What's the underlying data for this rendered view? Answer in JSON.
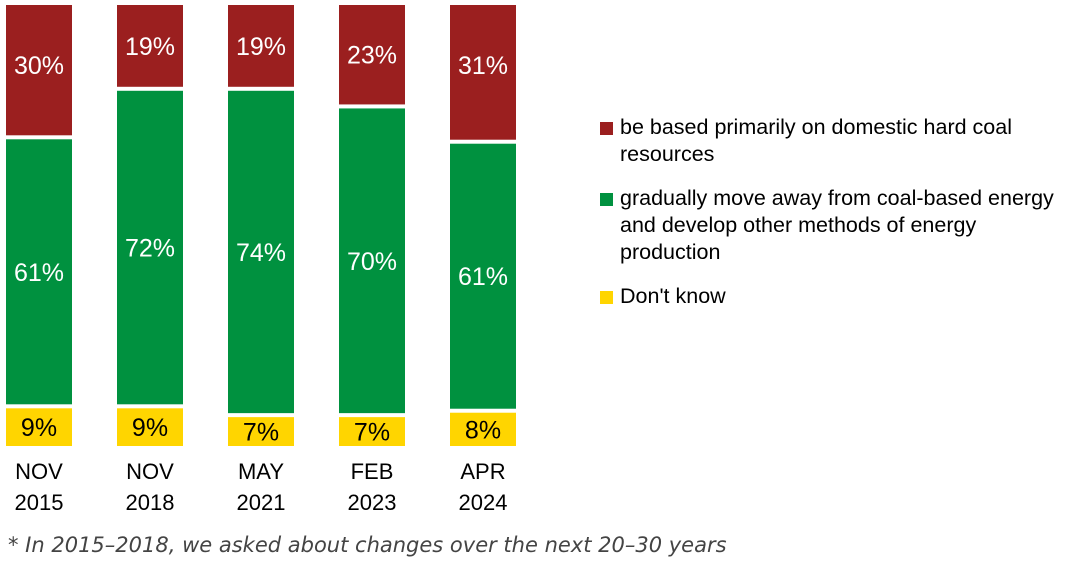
{
  "chart_data": {
    "type": "bar",
    "stacked": true,
    "categories": [
      [
        "NOV",
        "2015"
      ],
      [
        "NOV",
        "2018"
      ],
      [
        "MAY",
        "2021"
      ],
      [
        "FEB",
        "2023"
      ],
      [
        "APR",
        "2024"
      ]
    ],
    "series": [
      {
        "name": "Don't know",
        "color": "#ffd500",
        "values": [
          9,
          9,
          7,
          7,
          8
        ],
        "labels": [
          "9%",
          "9%",
          "7%",
          "7%",
          "8%"
        ],
        "label_color": "#000000"
      },
      {
        "name": "gradually move away from coal-based energy and develop other methods of energy production",
        "color": "#00913f",
        "values": [
          61,
          72,
          74,
          70,
          61
        ],
        "labels": [
          "61%",
          "72%",
          "74%",
          "70%",
          "61%"
        ],
        "label_color": "#ffffff"
      },
      {
        "name": "be based primarily on domestic hard coal resources",
        "color": "#9b1f1f",
        "values": [
          30,
          19,
          19,
          23,
          31
        ],
        "labels": [
          "30%",
          "19%",
          "19%",
          "23%",
          "31%"
        ],
        "label_color": "#ffffff"
      }
    ],
    "legend_placement": "right",
    "grid": false
  },
  "legend": {
    "items": [
      {
        "label": "be based primarily on domestic hard coal resources",
        "color": "#9b1f1f"
      },
      {
        "label": "gradually move away from coal-based energy and develop other methods of energy production",
        "color": "#00913f"
      },
      {
        "label": "Don't know",
        "color": "#ffd500"
      }
    ]
  },
  "footnote": "* In 2015–2018, we asked about changes over the next 20–30 years"
}
